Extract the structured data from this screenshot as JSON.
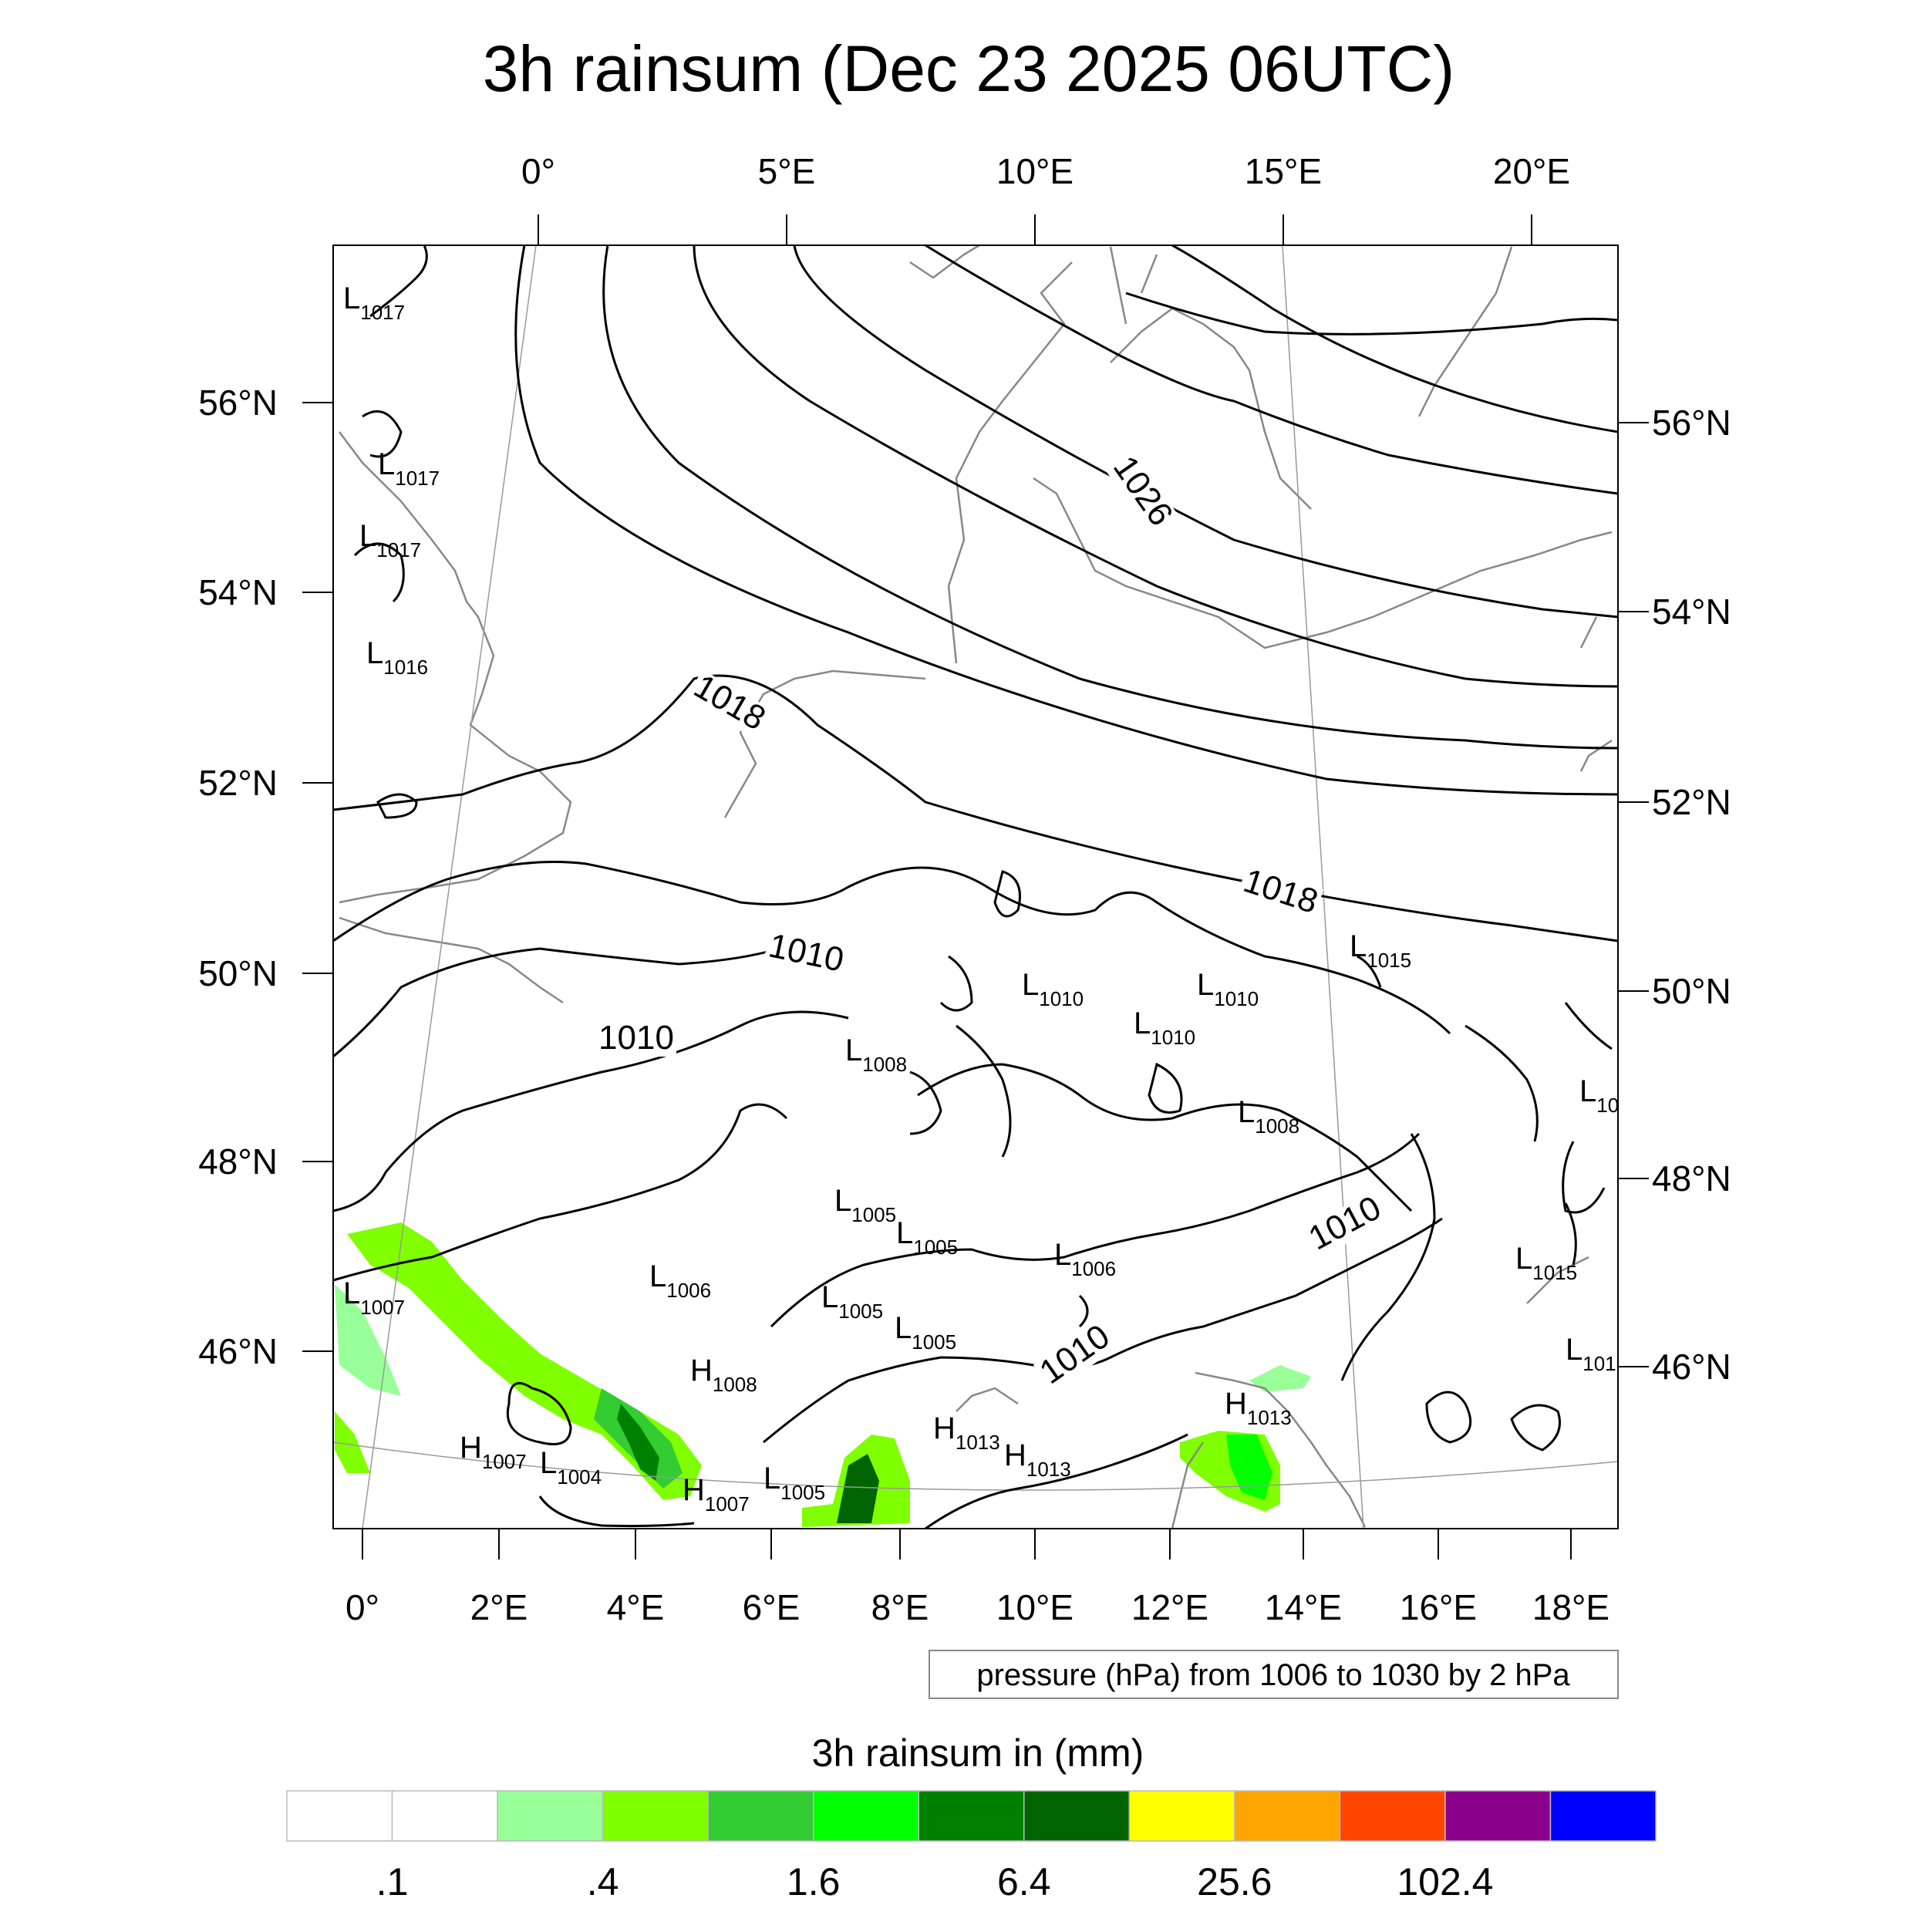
{
  "title": "3h rainsum (Dec 23 2025 06UTC)",
  "top_lon_labels": [
    "0°",
    "5°E",
    "10°E",
    "15°E",
    "20°E"
  ],
  "bottom_lon_labels": [
    "0°",
    "2°E",
    "4°E",
    "6°E",
    "8°E",
    "10°E",
    "12°E",
    "14°E",
    "16°E",
    "18°E"
  ],
  "left_lat_labels": [
    "56°N",
    "54°N",
    "52°N",
    "50°N",
    "48°N",
    "46°N"
  ],
  "right_lat_labels": [
    "56°N",
    "54°N",
    "52°N",
    "50°N",
    "48°N",
    "46°N"
  ],
  "contour_labels": [
    "1026",
    "1018",
    "1018",
    "1010",
    "1010",
    "1010",
    "1010"
  ],
  "pressure_centers": [
    {
      "t": "L",
      "v": "1017"
    },
    {
      "t": "L",
      "v": "1017"
    },
    {
      "t": "L",
      "v": "1017"
    },
    {
      "t": "L",
      "v": "1016"
    },
    {
      "t": "L",
      "v": "1015"
    },
    {
      "t": "L",
      "v": "1010"
    },
    {
      "t": "L",
      "v": "1010"
    },
    {
      "t": "L",
      "v": "1010"
    },
    {
      "t": "L",
      "v": "1008"
    },
    {
      "t": "L",
      "v": "1008"
    },
    {
      "t": "L",
      "v": "10"
    },
    {
      "t": "L",
      "v": "1005"
    },
    {
      "t": "L",
      "v": "1005"
    },
    {
      "t": "L",
      "v": "1006"
    },
    {
      "t": "L",
      "v": "1006"
    },
    {
      "t": "L",
      "v": "1005"
    },
    {
      "t": "L",
      "v": "1005"
    },
    {
      "t": "L",
      "v": "1015"
    },
    {
      "t": "L",
      "v": "101"
    },
    {
      "t": "L",
      "v": "1007"
    },
    {
      "t": "H",
      "v": "1008"
    },
    {
      "t": "H",
      "v": "1013"
    },
    {
      "t": "H",
      "v": "1013"
    },
    {
      "t": "H",
      "v": "1013"
    },
    {
      "t": "H",
      "v": "1007"
    },
    {
      "t": "L",
      "v": "1004"
    },
    {
      "t": "H",
      "v": "1007"
    },
    {
      "t": "L",
      "v": "1005"
    }
  ],
  "pressure_note": "pressure (hPa) from 1006 to 1030 by 2 hPa",
  "colorbar": {
    "title": "3h rainsum in (mm)",
    "colors": [
      "#ffffff",
      "#ffffff",
      "#99ff99",
      "#80ff00",
      "#33cc33",
      "#00ff00",
      "#008000",
      "#006400",
      "#ffff00",
      "#ffa500",
      "#ff4500",
      "#8b008b",
      "#0000ff"
    ],
    "tick_labels": [
      ".1",
      ".4",
      "1.6",
      "6.4",
      "25.6",
      "102.4"
    ]
  }
}
